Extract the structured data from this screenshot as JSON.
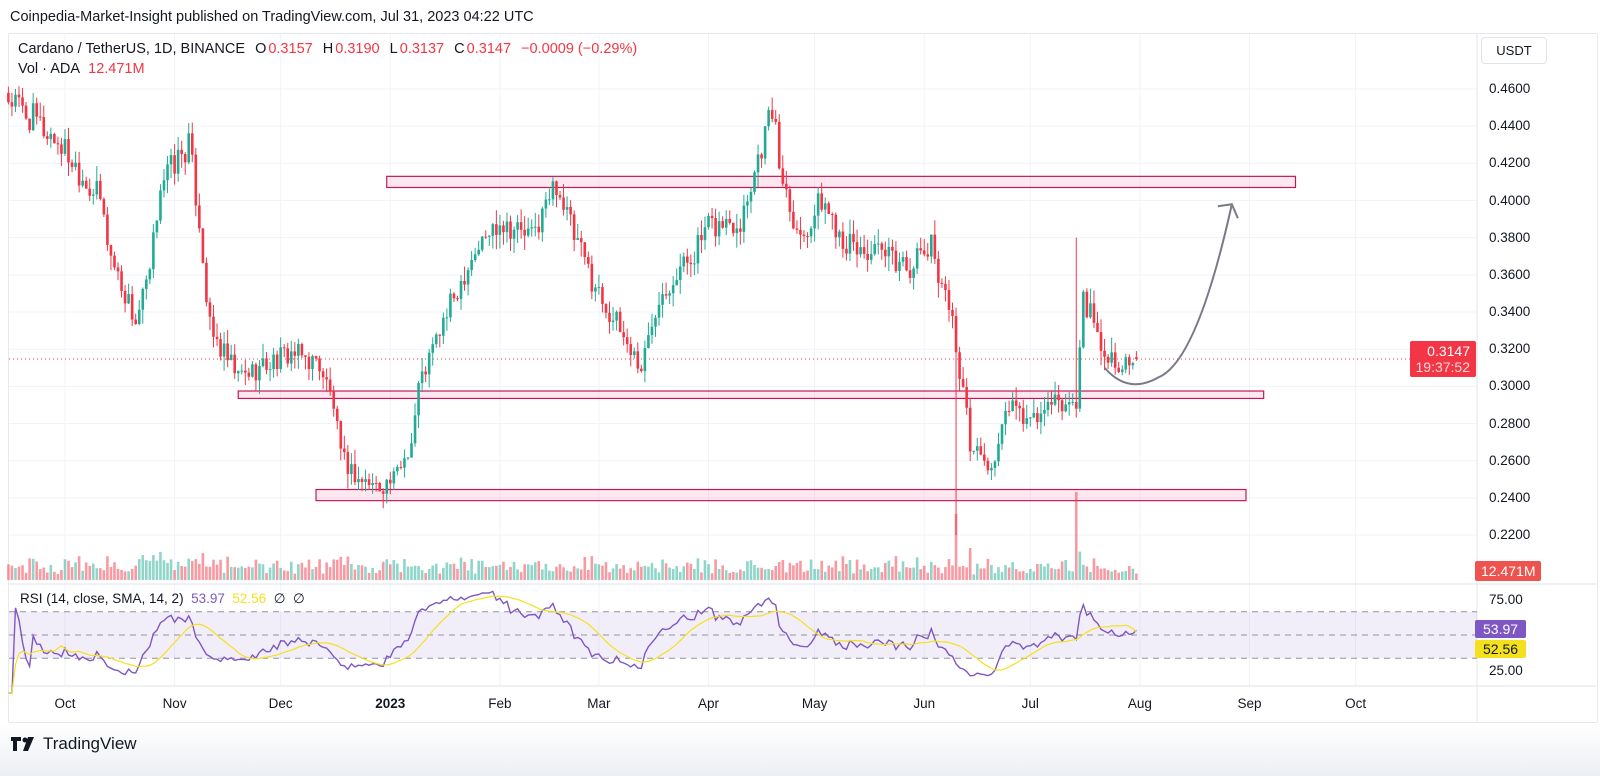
{
  "publish_line": "Coinpedia-Market-Insight published on TradingView.com, Jul 31, 2023 04:22 UTC",
  "legend": {
    "symbol": "Cardano / TetherUS, 1D, BINANCE",
    "o_label": "O",
    "o": "0.3157",
    "h_label": "H",
    "h": "0.3190",
    "l_label": "L",
    "l": "0.3137",
    "c_label": "C",
    "c": "0.3147",
    "change": "−0.0009 (−0.29%)",
    "vol_label": "Vol · ADA",
    "vol_value": "12.471M"
  },
  "rsi_legend": {
    "label": "RSI (14, close, SMA, 14, 2)",
    "rsi": "53.97",
    "sma": "52.56",
    "extra1": "∅",
    "extra2": "∅"
  },
  "currency": "USDT",
  "price_tag": {
    "price": "0.3147",
    "countdown": "19:37:52"
  },
  "volume_tag": "12.471M",
  "rsi_tags": {
    "rsi": "53.97",
    "sma": "52.56"
  },
  "footer": {
    "brand": "TradingView"
  },
  "colors": {
    "up": "#22ab94",
    "down": "#f23645",
    "rsi": "#7e57c2",
    "sma": "#f5e01f",
    "zone": "#c2185b"
  },
  "chart_data": {
    "type": "candlestick",
    "title": "Cardano / TetherUS, 1D, BINANCE",
    "start_date": "2022-09-15",
    "y_ticks": [
      "0.4600",
      "0.4400",
      "0.4200",
      "0.4000",
      "0.3800",
      "0.3600",
      "0.3400",
      "0.3200",
      "0.3000",
      "0.2800",
      "0.2600",
      "0.2400",
      "0.2200"
    ],
    "ylim": [
      0.2,
      0.47
    ],
    "x_ticks": [
      {
        "label": "Oct",
        "day": 16
      },
      {
        "label": "Nov",
        "day": 47
      },
      {
        "label": "Dec",
        "day": 77
      },
      {
        "label": "2023",
        "day": 108,
        "bold": true
      },
      {
        "label": "Feb",
        "day": 139
      },
      {
        "label": "Mar",
        "day": 167
      },
      {
        "label": "Apr",
        "day": 198
      },
      {
        "label": "May",
        "day": 228
      },
      {
        "label": "Jun",
        "day": 259
      },
      {
        "label": "Jul",
        "day": 289
      },
      {
        "label": "Aug",
        "day": 320
      },
      {
        "label": "Sep",
        "day": 351
      },
      {
        "label": "Oct",
        "day": 381
      }
    ],
    "close_anchors": [
      [
        0,
        0.455
      ],
      [
        15,
        0.43
      ],
      [
        26,
        0.4
      ],
      [
        29,
        0.37
      ],
      [
        36,
        0.335
      ],
      [
        40,
        0.36
      ],
      [
        43,
        0.41
      ],
      [
        47,
        0.42
      ],
      [
        51,
        0.43
      ],
      [
        54,
        0.39
      ],
      [
        57,
        0.33
      ],
      [
        60,
        0.32
      ],
      [
        65,
        0.305
      ],
      [
        71,
        0.31
      ],
      [
        80,
        0.318
      ],
      [
        88,
        0.312
      ],
      [
        92,
        0.29
      ],
      [
        94,
        0.262
      ],
      [
        99,
        0.25
      ],
      [
        105,
        0.246
      ],
      [
        109,
        0.25
      ],
      [
        114,
        0.27
      ],
      [
        116,
        0.3
      ],
      [
        122,
        0.33
      ],
      [
        131,
        0.37
      ],
      [
        139,
        0.39
      ],
      [
        148,
        0.38
      ],
      [
        155,
        0.41
      ],
      [
        160,
        0.38
      ],
      [
        167,
        0.35
      ],
      [
        173,
        0.33
      ],
      [
        179,
        0.31
      ],
      [
        184,
        0.35
      ],
      [
        193,
        0.37
      ],
      [
        198,
        0.385
      ],
      [
        207,
        0.39
      ],
      [
        213,
        0.43
      ],
      [
        216,
        0.45
      ],
      [
        218,
        0.42
      ],
      [
        224,
        0.38
      ],
      [
        230,
        0.4
      ],
      [
        238,
        0.375
      ],
      [
        247,
        0.37
      ],
      [
        255,
        0.365
      ],
      [
        261,
        0.375
      ],
      [
        266,
        0.345
      ],
      [
        269,
        0.31
      ],
      [
        272,
        0.27
      ],
      [
        278,
        0.255
      ],
      [
        283,
        0.29
      ],
      [
        289,
        0.28
      ],
      [
        295,
        0.29
      ],
      [
        302,
        0.29
      ],
      [
        304,
        0.35
      ],
      [
        309,
        0.32
      ],
      [
        317,
        0.31
      ],
      [
        319,
        0.3147
      ]
    ],
    "last_candle": {
      "open": 0.3157,
      "high": 0.319,
      "low": 0.3137,
      "close": 0.3147
    },
    "volume_spikes": [
      {
        "day": 268,
        "value": 3.0
      },
      {
        "day": 302,
        "value": 4.0
      }
    ],
    "zones": [
      {
        "name": "resistance-zone",
        "from_day": 107,
        "to_day": 364,
        "low": 0.407,
        "high": 0.413
      },
      {
        "name": "support-zone",
        "from_day": 65,
        "to_day": 355,
        "low": 0.2935,
        "high": 0.2975
      },
      {
        "name": "low-support-zone",
        "from_day": 87,
        "to_day": 350,
        "low": 0.2385,
        "high": 0.2445
      }
    ],
    "projection_arrow": {
      "from": [
        310,
        0.31
      ],
      "dip": [
        318,
        0.302
      ],
      "to": [
        346,
        0.398
      ]
    },
    "rsi": {
      "period": 14,
      "sma": 14,
      "upper": 70,
      "middle": 50,
      "lower": 30,
      "ticks": [
        "75.00",
        "25.00"
      ],
      "current": 53.97,
      "sma_current": 52.56
    }
  }
}
